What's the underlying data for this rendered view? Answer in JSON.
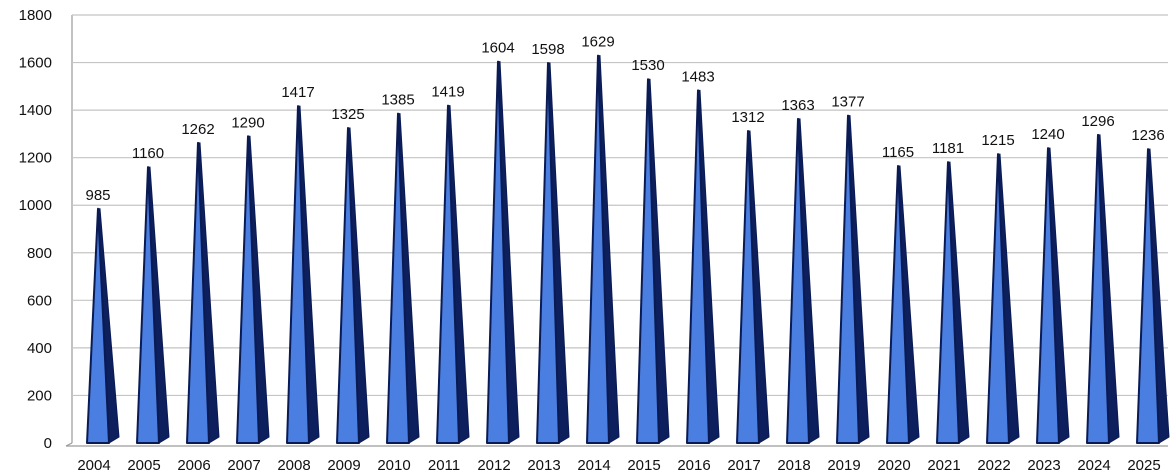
{
  "chart_data": {
    "type": "bar",
    "bar_shape": "3d-pyramid",
    "categories": [
      "2004",
      "2005",
      "2006",
      "2007",
      "2008",
      "2009",
      "2010",
      "2011",
      "2012",
      "2013",
      "2014",
      "2015",
      "2016",
      "2017",
      "2018",
      "2019",
      "2020",
      "2021",
      "2022",
      "2023",
      "2024",
      "2025"
    ],
    "values": [
      985,
      1160,
      1262,
      1290,
      1417,
      1325,
      1385,
      1419,
      1604,
      1598,
      1629,
      1530,
      1483,
      1312,
      1363,
      1377,
      1165,
      1181,
      1215,
      1240,
      1296,
      1236
    ],
    "data_labels": [
      "985",
      "1160",
      "1262",
      "1290",
      "1417",
      "1325",
      "1385",
      "1419",
      "1604",
      "1598",
      "1629",
      "1530",
      "1483",
      "1312",
      "1363",
      "1377",
      "1165",
      "1181",
      "1215",
      "1240",
      "1296",
      "1236"
    ],
    "y_ticks": [
      "0",
      "200",
      "400",
      "600",
      "800",
      "1000",
      "1200",
      "1400",
      "1600",
      "1800"
    ],
    "ylim": [
      0,
      1800
    ],
    "title": "",
    "xlabel": "",
    "ylabel": "",
    "grid": true,
    "legend": "none",
    "colors": {
      "bar_face": "#4a7ee0",
      "bar_side": "#0d1f5c",
      "bar_edge": "#0a1a52",
      "gridline": "#c4c4c4",
      "wall_edge": "#9a9a9a"
    }
  }
}
